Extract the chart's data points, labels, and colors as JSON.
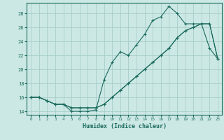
{
  "xlabel": "Humidex (Indice chaleur)",
  "background_color": "#cce8e4",
  "grid_color": "#a8ceca",
  "line_color": "#1a6b5e",
  "xlim": [
    -0.5,
    23.5
  ],
  "ylim": [
    13.5,
    29.5
  ],
  "xticks": [
    0,
    1,
    2,
    3,
    4,
    5,
    6,
    7,
    8,
    9,
    10,
    11,
    12,
    13,
    14,
    15,
    16,
    17,
    18,
    19,
    20,
    21,
    22,
    23
  ],
  "yticks": [
    14,
    16,
    18,
    20,
    22,
    24,
    26,
    28
  ],
  "line1_x": [
    0,
    1,
    2,
    3,
    4,
    5,
    6,
    7,
    8,
    9,
    10,
    11,
    12,
    13,
    14,
    15,
    16,
    17,
    18,
    19,
    20,
    21,
    22,
    23
  ],
  "line1_y": [
    16.0,
    16.0,
    15.5,
    15.0,
    15.0,
    14.0,
    14.0,
    14.0,
    14.2,
    18.5,
    21.0,
    22.5,
    22.0,
    23.5,
    25.0,
    27.0,
    27.5,
    29.0,
    28.0,
    26.5,
    26.5,
    26.5,
    23.0,
    21.5
  ],
  "line2_x": [
    0,
    1,
    2,
    3,
    4,
    5,
    6,
    7,
    8,
    9,
    10,
    11,
    12,
    13,
    14,
    15,
    16,
    17,
    18,
    19,
    20,
    21,
    22,
    23
  ],
  "line2_y": [
    16.0,
    16.0,
    15.5,
    15.0,
    15.0,
    14.5,
    14.5,
    14.5,
    14.5,
    15.0,
    16.0,
    17.0,
    18.0,
    19.0,
    20.0,
    21.0,
    22.0,
    23.0,
    24.5,
    25.5,
    26.0,
    26.5,
    26.5,
    21.5
  ],
  "line3_x": [
    0,
    1,
    2,
    3,
    4,
    5,
    6,
    7,
    8,
    9,
    10,
    11,
    12,
    13,
    14,
    15,
    16,
    17,
    18,
    19,
    20,
    21,
    22,
    23
  ],
  "line3_y": [
    16.0,
    16.0,
    15.5,
    15.0,
    15.0,
    14.5,
    14.5,
    14.5,
    14.5,
    15.0,
    16.0,
    17.0,
    18.0,
    19.0,
    20.0,
    21.0,
    22.0,
    23.0,
    24.5,
    25.5,
    26.0,
    26.5,
    26.5,
    21.5
  ]
}
